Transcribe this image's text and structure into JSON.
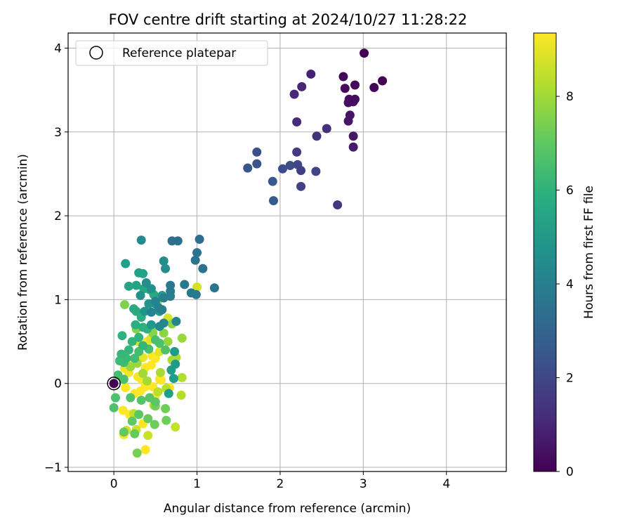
{
  "chart_data": {
    "type": "scatter",
    "title": "FOV centre drift starting at 2024/10/27 11:28:22",
    "xlabel": "Angular distance from reference (arcmin)",
    "ylabel": "Rotation from reference (arcmin)",
    "xlim": [
      -0.55,
      4.72
    ],
    "ylim": [
      -1.05,
      4.18
    ],
    "xticks": [
      0,
      1,
      2,
      3,
      4
    ],
    "yticks": [
      -1,
      0,
      1,
      2,
      3,
      4
    ],
    "grid": true,
    "legend": {
      "position": "upper-left",
      "entries": [
        "Reference platepar"
      ]
    },
    "reference_point": {
      "x": 0,
      "y": 0
    },
    "colorbar": {
      "label": "Hours from first FF file",
      "colormap": "viridis",
      "range": [
        0,
        9.35
      ],
      "ticks": [
        0,
        2,
        4,
        6,
        8
      ]
    },
    "points": [
      [
        3.01,
        3.94,
        0.0
      ],
      [
        3.23,
        3.61,
        0.04
      ],
      [
        3.13,
        3.53,
        0.08
      ],
      [
        2.9,
        3.56,
        0.15
      ],
      [
        2.76,
        3.66,
        0.2
      ],
      [
        2.78,
        3.52,
        0.25
      ],
      [
        2.9,
        3.39,
        0.3
      ],
      [
        2.83,
        3.39,
        0.35
      ],
      [
        2.82,
        3.35,
        0.4
      ],
      [
        2.88,
        3.36,
        0.45
      ],
      [
        2.84,
        3.2,
        0.5
      ],
      [
        2.82,
        3.13,
        0.55
      ],
      [
        2.88,
        2.95,
        0.6
      ],
      [
        2.88,
        2.82,
        0.7
      ],
      [
        2.37,
        3.69,
        0.85
      ],
      [
        2.26,
        3.54,
        0.95
      ],
      [
        2.17,
        3.45,
        1.05
      ],
      [
        2.2,
        3.12,
        1.15
      ],
      [
        2.56,
        3.04,
        1.25
      ],
      [
        2.44,
        2.95,
        1.35
      ],
      [
        2.69,
        2.13,
        1.45
      ],
      [
        2.2,
        2.76,
        1.6
      ],
      [
        2.25,
        2.54,
        1.7
      ],
      [
        2.25,
        2.35,
        1.8
      ],
      [
        2.43,
        2.53,
        1.9
      ],
      [
        2.21,
        2.61,
        2.0
      ],
      [
        2.12,
        2.6,
        2.1
      ],
      [
        2.03,
        2.56,
        2.2
      ],
      [
        1.72,
        2.76,
        2.3
      ],
      [
        1.72,
        2.62,
        2.4
      ],
      [
        1.61,
        2.57,
        2.5
      ],
      [
        1.91,
        2.41,
        2.6
      ],
      [
        1.92,
        2.18,
        2.7
      ],
      [
        1.03,
        1.72,
        3.3
      ],
      [
        0.7,
        1.7,
        3.4
      ],
      [
        0.77,
        1.7,
        3.45
      ],
      [
        1.0,
        1.56,
        3.5
      ],
      [
        0.98,
        1.47,
        3.55
      ],
      [
        1.07,
        1.37,
        3.6
      ],
      [
        1.21,
        1.14,
        3.65
      ],
      [
        0.85,
        1.18,
        3.7
      ],
      [
        0.93,
        1.08,
        3.75
      ],
      [
        0.99,
        1.06,
        3.8
      ],
      [
        0.68,
        1.17,
        3.85
      ],
      [
        0.68,
        1.1,
        3.9
      ],
      [
        0.68,
        1.04,
        3.95
      ],
      [
        0.6,
        1.02,
        4.0
      ],
      [
        0.58,
        0.88,
        4.05
      ],
      [
        0.54,
        0.9,
        4.1
      ],
      [
        0.45,
        0.85,
        4.15
      ],
      [
        0.5,
        0.98,
        4.2
      ],
      [
        0.75,
        0.74,
        4.3
      ],
      [
        0.6,
        0.72,
        4.35
      ],
      [
        0.55,
        0.68,
        4.4
      ],
      [
        0.33,
        1.71,
        4.5
      ],
      [
        0.6,
        1.46,
        4.55
      ],
      [
        0.62,
        1.37,
        4.6
      ],
      [
        0.39,
        1.2,
        4.65
      ],
      [
        0.45,
        1.13,
        4.7
      ],
      [
        0.32,
        1.05,
        4.75
      ],
      [
        0.42,
        0.95,
        4.8
      ],
      [
        0.37,
        0.86,
        4.85
      ],
      [
        0.5,
        0.95,
        4.9
      ],
      [
        0.55,
        0.86,
        4.95
      ],
      [
        0.45,
        0.7,
        5.0
      ],
      [
        0.58,
        1.05,
        5.05
      ],
      [
        0.73,
        0.38,
        5.05
      ],
      [
        0.74,
        0.23,
        5.1
      ],
      [
        0.69,
        0.16,
        5.15
      ],
      [
        0.72,
        0.06,
        5.2
      ],
      [
        0.66,
        -0.12,
        5.25
      ],
      [
        0.14,
        1.43,
        5.3
      ],
      [
        0.3,
        1.32,
        5.35
      ],
      [
        0.35,
        1.31,
        5.4
      ],
      [
        0.27,
        1.17,
        5.45
      ],
      [
        0.18,
        1.16,
        5.5
      ],
      [
        0.36,
        1.13,
        5.55
      ],
      [
        0.43,
        1.12,
        5.6
      ],
      [
        0.48,
        1.06,
        5.65
      ],
      [
        0.24,
        0.89,
        5.7
      ],
      [
        0.27,
        0.86,
        5.75
      ],
      [
        0.33,
        0.79,
        5.8
      ],
      [
        0.26,
        0.7,
        5.85
      ],
      [
        0.35,
        0.67,
        5.9
      ],
      [
        0.4,
        0.65,
        5.95
      ],
      [
        0.1,
        0.57,
        6.0
      ],
      [
        0.3,
        0.55,
        6.05
      ],
      [
        0.22,
        0.5,
        6.1
      ],
      [
        0.35,
        0.45,
        6.15
      ],
      [
        0.18,
        0.4,
        6.2
      ],
      [
        0.09,
        0.35,
        6.25
      ],
      [
        0.15,
        0.3,
        6.3
      ],
      [
        0.07,
        0.27,
        6.35
      ],
      [
        0.12,
        0.25,
        6.4
      ],
      [
        0.25,
        0.3,
        6.45
      ],
      [
        0.3,
        0.38,
        6.5
      ],
      [
        0.42,
        0.41,
        6.55
      ],
      [
        0.5,
        0.52,
        6.6
      ],
      [
        0.55,
        0.48,
        6.65
      ],
      [
        0.62,
        0.4,
        6.7
      ],
      [
        0.05,
        0.1,
        6.55
      ],
      [
        0.12,
        0.05,
        6.6
      ],
      [
        0.02,
        -0.17,
        6.65
      ],
      [
        0.0,
        -0.29,
        6.7
      ],
      [
        0.2,
        -0.17,
        6.75
      ],
      [
        0.33,
        -0.2,
        6.8
      ],
      [
        0.43,
        -0.17,
        6.85
      ],
      [
        0.5,
        -0.22,
        6.9
      ],
      [
        0.3,
        -0.37,
        6.95
      ],
      [
        0.22,
        -0.45,
        7.0
      ],
      [
        0.12,
        -0.58,
        7.05
      ],
      [
        0.25,
        -0.6,
        7.1
      ],
      [
        0.41,
        -0.42,
        7.15
      ],
      [
        0.49,
        -0.49,
        7.2
      ],
      [
        0.63,
        -0.44,
        7.25
      ],
      [
        0.62,
        -0.3,
        7.3
      ],
      [
        0.5,
        -0.27,
        7.35
      ],
      [
        0.28,
        -0.83,
        7.4
      ],
      [
        0.52,
        0.96,
        7.45
      ],
      [
        0.13,
        0.94,
        7.5
      ],
      [
        0.27,
        0.65,
        7.55
      ],
      [
        0.46,
        0.67,
        7.6
      ],
      [
        0.47,
        0.6,
        7.65
      ],
      [
        0.6,
        0.6,
        7.7
      ],
      [
        0.7,
        0.71,
        7.75
      ],
      [
        0.55,
        0.48,
        7.8
      ],
      [
        0.65,
        0.5,
        7.85
      ],
      [
        0.82,
        0.54,
        7.9
      ],
      [
        0.2,
        0.2,
        7.9
      ],
      [
        0.28,
        0.24,
        7.95
      ],
      [
        0.35,
        0.12,
        8.0
      ],
      [
        0.4,
        0.03,
        8.05
      ],
      [
        0.56,
        0.13,
        8.1
      ],
      [
        0.7,
        0.28,
        8.15
      ],
      [
        0.75,
        0.31,
        8.2
      ],
      [
        0.82,
        0.07,
        8.25
      ],
      [
        0.81,
        -0.14,
        8.3
      ],
      [
        0.63,
        -0.06,
        8.35
      ],
      [
        0.53,
        -0.1,
        8.4
      ],
      [
        0.24,
        -0.36,
        8.45
      ],
      [
        0.48,
        -0.26,
        8.5
      ],
      [
        0.74,
        -0.52,
        8.55
      ],
      [
        0.41,
        -0.62,
        8.6
      ],
      [
        0.27,
        -0.55,
        8.65
      ],
      [
        0.15,
        -0.56,
        8.7
      ],
      [
        1.0,
        1.15,
        8.75
      ],
      [
        0.65,
        0.78,
        8.8
      ],
      [
        0.29,
        0.5,
        8.85
      ],
      [
        0.44,
        0.53,
        8.9
      ],
      [
        0.55,
        0.38,
        8.95
      ],
      [
        0.35,
        0.31,
        9.0
      ],
      [
        0.23,
        0.29,
        9.05
      ],
      [
        0.18,
        0.24,
        9.1
      ],
      [
        0.13,
        0.18,
        9.15
      ],
      [
        0.18,
        0.13,
        9.2
      ],
      [
        0.29,
        0.08,
        9.25
      ],
      [
        0.34,
        0.04,
        9.3
      ],
      [
        0.46,
        0.33,
        9.3
      ],
      [
        0.45,
        0.22,
        9.35
      ],
      [
        0.38,
        0.19,
        9.35
      ],
      [
        0.57,
        0.04,
        9.35
      ],
      [
        0.47,
        -0.04,
        9.35
      ],
      [
        0.38,
        -0.04,
        9.35
      ],
      [
        0.32,
        -0.09,
        9.35
      ],
      [
        0.25,
        -0.12,
        9.35
      ],
      [
        0.14,
        -0.05,
        9.35
      ],
      [
        0.11,
        -0.32,
        9.35
      ],
      [
        0.19,
        -0.37,
        9.35
      ],
      [
        0.35,
        -0.48,
        9.35
      ],
      [
        0.38,
        -0.79,
        9.35
      ],
      [
        0.12,
        -0.61,
        9.35
      ],
      [
        0.4,
        0.5,
        9.35
      ],
      [
        0.5,
        0.3,
        9.35
      ],
      [
        0.55,
        0.05,
        9.35
      ],
      [
        0.67,
        -0.05,
        9.35
      ],
      [
        0.5,
        -0.15,
        9.35
      ]
    ]
  }
}
